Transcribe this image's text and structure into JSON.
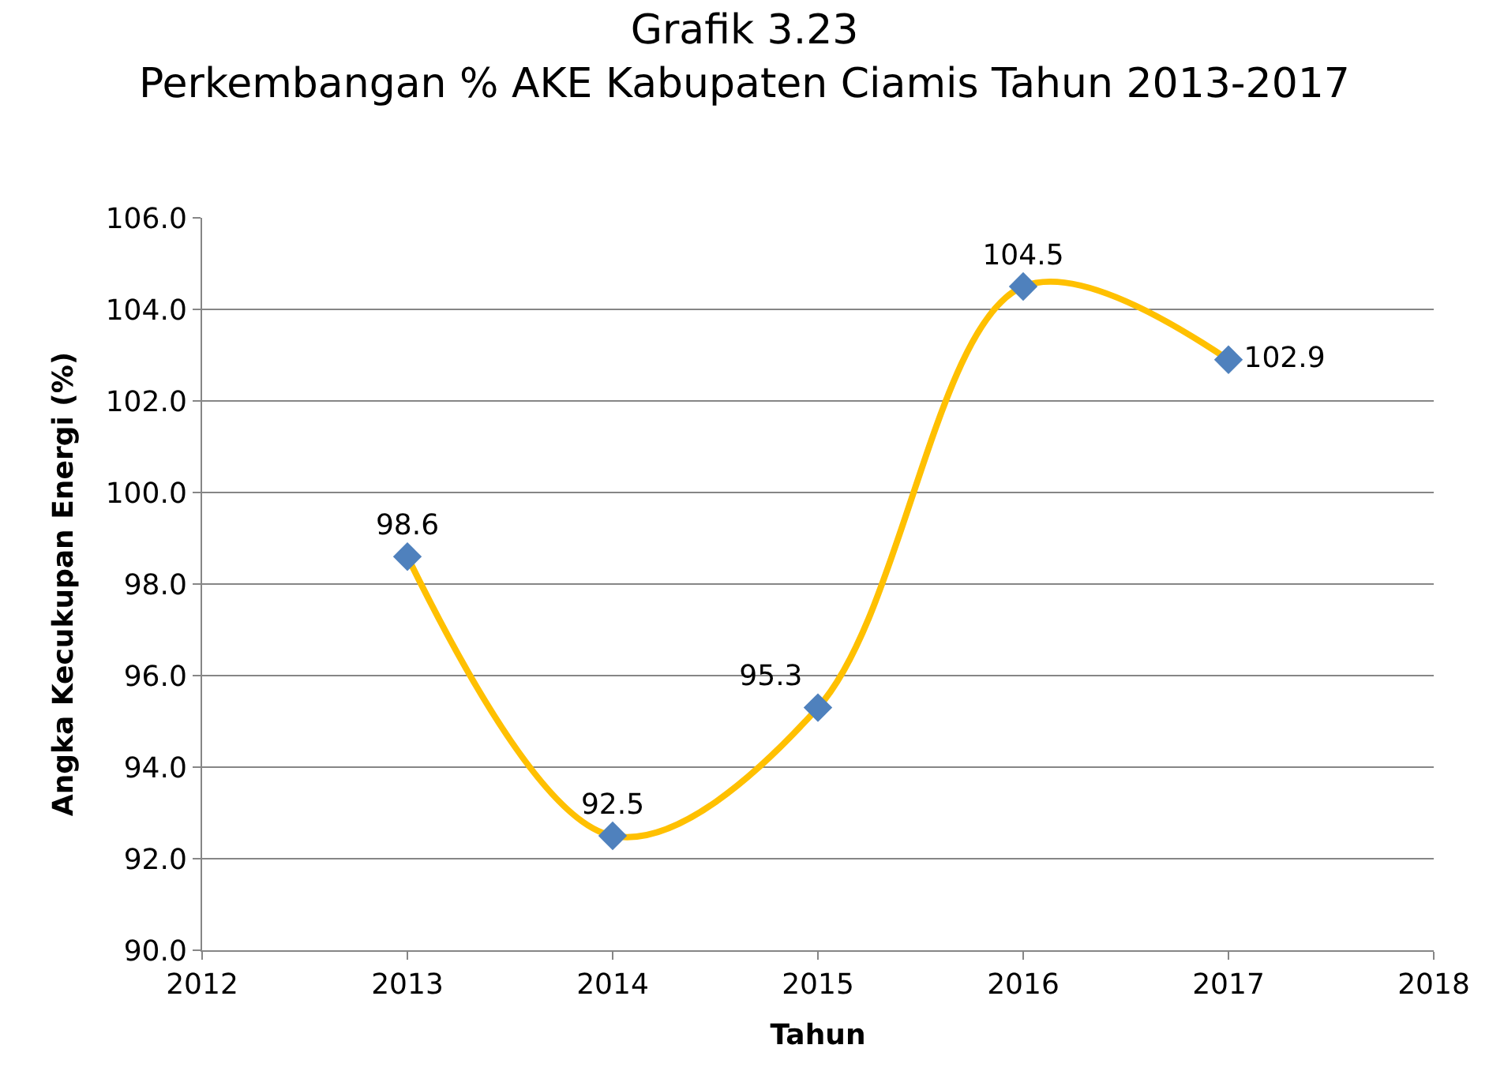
{
  "chart_data": {
    "type": "line",
    "title": "Grafik 3.23",
    "subtitle": "Perkembangan % AKE Kabupaten Ciamis Tahun 2013-2017",
    "xlabel": "Tahun",
    "ylabel": "Angka Kecukupan Energi (%)",
    "x": [
      2013,
      2014,
      2015,
      2016,
      2017
    ],
    "series": [
      {
        "color": "#ffc000",
        "colors": [
          "#4f81bd",
          "#4f81bd",
          "#4f81bd",
          "#4f81bd",
          "#4f81bd"
        ],
        "values": [
          98.6,
          92.5,
          95.3,
          104.5,
          102.9
        ]
      }
    ],
    "xlim": [
      2012,
      2018
    ],
    "xticks": [
      2012,
      2013,
      2014,
      2015,
      2016,
      2017,
      2018
    ],
    "ylim": [
      90,
      106
    ],
    "yticks": [
      {
        "value": 90,
        "label": "90.0"
      },
      {
        "value": 92,
        "label": "92.0"
      },
      {
        "value": 94,
        "label": "94.0"
      },
      {
        "value": 96,
        "label": "96.0"
      },
      {
        "value": 98,
        "label": "98.0"
      },
      {
        "value": 100,
        "label": "100.0"
      },
      {
        "value": 102,
        "label": "102.0"
      },
      {
        "value": 104,
        "label": "104.0"
      },
      {
        "value": 106,
        "label": "106.0"
      }
    ],
    "grid": "y",
    "legend": false,
    "marker": "diamond",
    "line_style": "solid",
    "data_labels": true
  }
}
